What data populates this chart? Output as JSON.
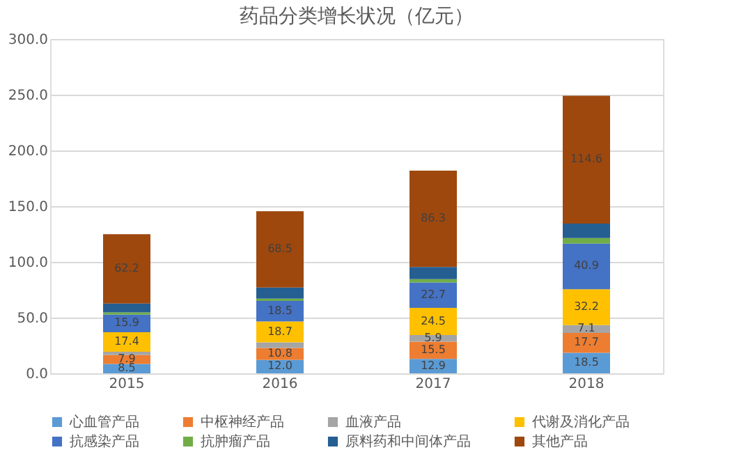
{
  "chart_data": {
    "type": "bar",
    "title": "药品分类增长状况（亿元）",
    "stacked": true,
    "categories": [
      "2015",
      "2016",
      "2017",
      "2018"
    ],
    "series": [
      {
        "name": "心血管产品",
        "color": "#5b9bd5",
        "values": [
          8.5,
          12.0,
          12.9,
          18.5
        ],
        "value_labels": [
          "8.5",
          "12.0",
          "12.9",
          "18.5"
        ]
      },
      {
        "name": "中枢神经产品",
        "color": "#ed7d31",
        "values": [
          7.9,
          10.8,
          15.5,
          17.7
        ],
        "value_labels": [
          "7.9",
          "10.8",
          "15.5",
          "17.7"
        ]
      },
      {
        "name": "血液产品",
        "color": "#a5a5a5",
        "values": [
          3,
          5,
          5.9,
          7.1
        ],
        "value_labels": [
          null,
          null,
          "5.9",
          "7.1"
        ]
      },
      {
        "name": "代谢及消化产品",
        "color": "#ffc000",
        "values": [
          17.4,
          18.7,
          24.5,
          32.2
        ],
        "value_labels": [
          "17.4",
          "18.7",
          "24.5",
          "32.2"
        ]
      },
      {
        "name": "抗感染产品",
        "color": "#4472c4",
        "values": [
          15.9,
          18.5,
          22.7,
          40.9
        ],
        "value_labels": [
          "15.9",
          "18.5",
          "22.7",
          "40.9"
        ]
      },
      {
        "name": "抗肿瘤产品",
        "color": "#70ad47",
        "values": [
          2,
          2,
          3,
          5
        ],
        "value_labels": [
          null,
          null,
          null,
          null
        ]
      },
      {
        "name": "原料药和中间体产品",
        "color": "#255e91",
        "values": [
          8,
          10,
          11,
          13
        ],
        "value_labels": [
          null,
          null,
          null,
          null
        ]
      },
      {
        "name": "其他产品",
        "color": "#9e480e",
        "values": [
          62.2,
          68.5,
          86.3,
          114.6
        ],
        "value_labels": [
          "62.2",
          "68.5",
          "86.3",
          "114.6"
        ]
      }
    ],
    "ylim": [
      0,
      300
    ],
    "yticks": [
      {
        "value": 0,
        "label": "0.0"
      },
      {
        "value": 50,
        "label": "50.0"
      },
      {
        "value": 100,
        "label": "100.0"
      },
      {
        "value": 150,
        "label": "150.0"
      },
      {
        "value": 200,
        "label": "200.0"
      },
      {
        "value": 250,
        "label": "250.0"
      },
      {
        "value": 300,
        "label": "300.0"
      }
    ],
    "grid": "y",
    "legend": "bottom"
  }
}
